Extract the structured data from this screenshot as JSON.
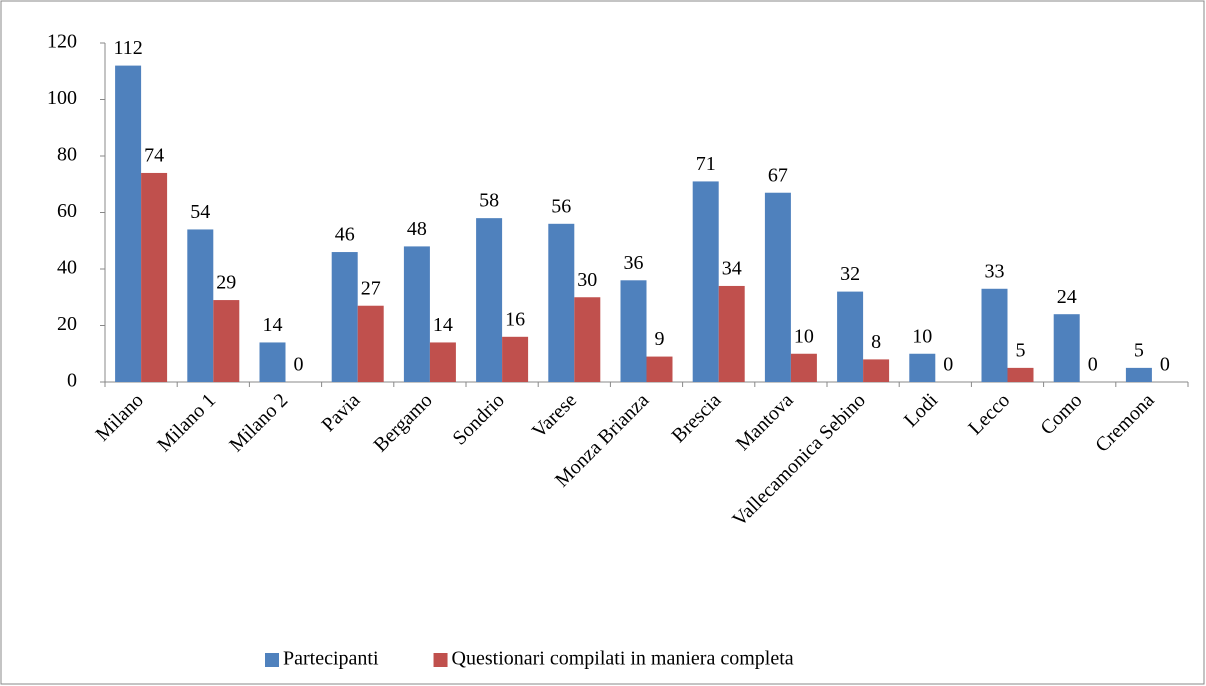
{
  "chart_data": {
    "type": "bar",
    "categories": [
      "Milano",
      "Milano 1",
      "Milano 2",
      "Pavia",
      "Bergamo",
      "Sondrio",
      "Varese",
      "Monza Brianza",
      "Brescia",
      "Mantova",
      "Vallecamonica Sebino",
      "Lodi",
      "Lecco",
      "Como",
      "Cremona"
    ],
    "series": [
      {
        "name": "Partecipanti",
        "color": "#4f81bd",
        "values": [
          112,
          54,
          14,
          46,
          48,
          58,
          56,
          36,
          71,
          67,
          32,
          10,
          33,
          24,
          5
        ]
      },
      {
        "name": "Questionari compilati in maniera completa",
        "color": "#c0504d",
        "values": [
          74,
          29,
          0,
          27,
          14,
          16,
          30,
          9,
          34,
          10,
          8,
          0,
          5,
          0,
          0
        ]
      }
    ],
    "ylim": [
      0,
      120
    ],
    "yticks": [
      0,
      20,
      40,
      60,
      80,
      100,
      120
    ],
    "grid": false,
    "legend": "bottom"
  }
}
